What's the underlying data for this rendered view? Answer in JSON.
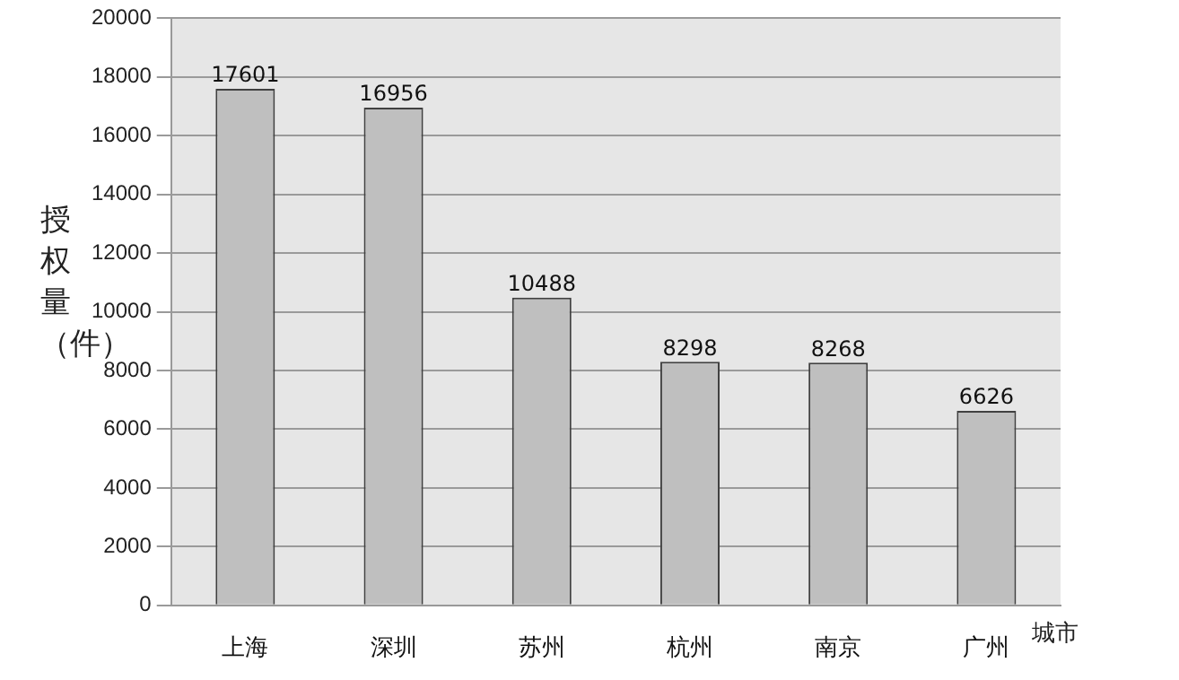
{
  "chart_data": {
    "type": "bar",
    "xlabel": "城市",
    "ylabel": "授权量（件）",
    "categories": [
      "上海",
      "深圳",
      "苏州",
      "杭州",
      "南京",
      "广州"
    ],
    "values": [
      17601,
      16956,
      10488,
      8298,
      8268,
      6626
    ],
    "color": "#bfbfbf",
    "ylim": [
      0,
      20000
    ],
    "yticks": [
      0,
      2000,
      4000,
      6000,
      8000,
      10000,
      12000,
      14000,
      16000,
      18000,
      20000
    ],
    "grid": "y",
    "legend": false,
    "data_labels": true
  }
}
